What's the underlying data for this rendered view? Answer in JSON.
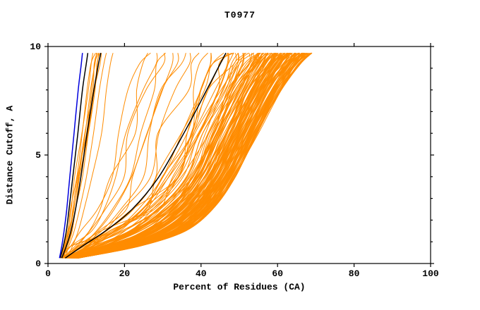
{
  "title": "T0977",
  "chart_data": {
    "type": "line",
    "title": "T0977",
    "xlabel": "Percent of Residues (CA)",
    "ylabel": "Distance Cutoff, A",
    "xlim": [
      0,
      100
    ],
    "ylim": [
      0,
      10
    ],
    "x_ticks": [
      0,
      20,
      40,
      60,
      80,
      100
    ],
    "y_ticks": [
      0,
      5,
      10
    ],
    "y_minor_ticks": [
      1,
      2,
      3,
      4,
      6,
      7,
      8,
      9
    ],
    "grid": false,
    "legend": "none",
    "colors": {
      "orange": "#ff8c00",
      "black": "#000000",
      "blue": "#0000dd"
    },
    "levels": [
      0.25,
      0.8,
      1.5,
      2.5,
      4,
      6,
      8,
      9.2,
      9.7
    ],
    "curve_families": [
      {
        "name": "sparse-middle-fan",
        "color": "#ff8c00",
        "count": 14,
        "seed": 99,
        "gamma": 1.0,
        "jitter": 0.18,
        "x_min": [
          3,
          4.5,
          7,
          10,
          13,
          16,
          19,
          21,
          22
        ],
        "x_max": [
          7,
          15,
          23,
          30,
          36,
          42,
          46,
          48,
          49
        ]
      },
      {
        "name": "dense-main-band",
        "color": "#ff8c00",
        "count": 140,
        "seed": 42,
        "gamma": 0.55,
        "jitter": 0.1,
        "x_min": [
          3,
          6,
          13,
          22,
          30,
          35,
          40,
          43,
          44
        ],
        "x_max": [
          8,
          24,
          36,
          43,
          49,
          55,
          61,
          66,
          69
        ]
      },
      {
        "name": "left-cluster",
        "color": "#ff8c00",
        "count": 10,
        "seed": 7,
        "gamma": 1.0,
        "jitter": 0.12,
        "x_min": [
          3,
          3.5,
          4.2,
          5,
          6,
          7.5,
          9,
          10,
          10.5
        ],
        "x_max": [
          5,
          6.5,
          8,
          9.5,
          11.5,
          14,
          15.5,
          16.5,
          17
        ]
      }
    ],
    "highlight_curves": [
      {
        "name": "black-curve-left-1",
        "color": "#000000",
        "width": 1.5,
        "points": [
          [
            3.2,
            0.25
          ],
          [
            4,
            0.8
          ],
          [
            4.8,
            1.5
          ],
          [
            5.5,
            2.5
          ],
          [
            6.5,
            4
          ],
          [
            7.8,
            6
          ],
          [
            9,
            8
          ],
          [
            10,
            9.2
          ],
          [
            10.4,
            9.7
          ]
        ]
      },
      {
        "name": "black-curve-left-2",
        "color": "#000000",
        "width": 1.5,
        "points": [
          [
            3.6,
            0.25
          ],
          [
            4.8,
            0.8
          ],
          [
            6,
            1.5
          ],
          [
            7.2,
            2.5
          ],
          [
            8.6,
            4
          ],
          [
            10.2,
            6
          ],
          [
            12,
            8
          ],
          [
            13.2,
            9.2
          ],
          [
            13.8,
            9.7
          ]
        ]
      },
      {
        "name": "black-curve-middle",
        "color": "#000000",
        "width": 1.5,
        "points": [
          [
            4.5,
            0.25
          ],
          [
            9,
            0.8
          ],
          [
            15,
            1.5
          ],
          [
            22,
            2.5
          ],
          [
            29,
            4
          ],
          [
            35.5,
            6
          ],
          [
            41.5,
            8
          ],
          [
            45,
            9.2
          ],
          [
            46.5,
            9.7
          ]
        ]
      },
      {
        "name": "blue-curve",
        "color": "#0000dd",
        "width": 1.5,
        "points": [
          [
            3,
            0.25
          ],
          [
            3.6,
            0.8
          ],
          [
            4.2,
            1.5
          ],
          [
            4.9,
            2.5
          ],
          [
            5.7,
            4
          ],
          [
            6.8,
            6
          ],
          [
            7.9,
            8
          ],
          [
            8.7,
            9.2
          ],
          [
            9,
            9.7
          ]
        ]
      }
    ]
  }
}
